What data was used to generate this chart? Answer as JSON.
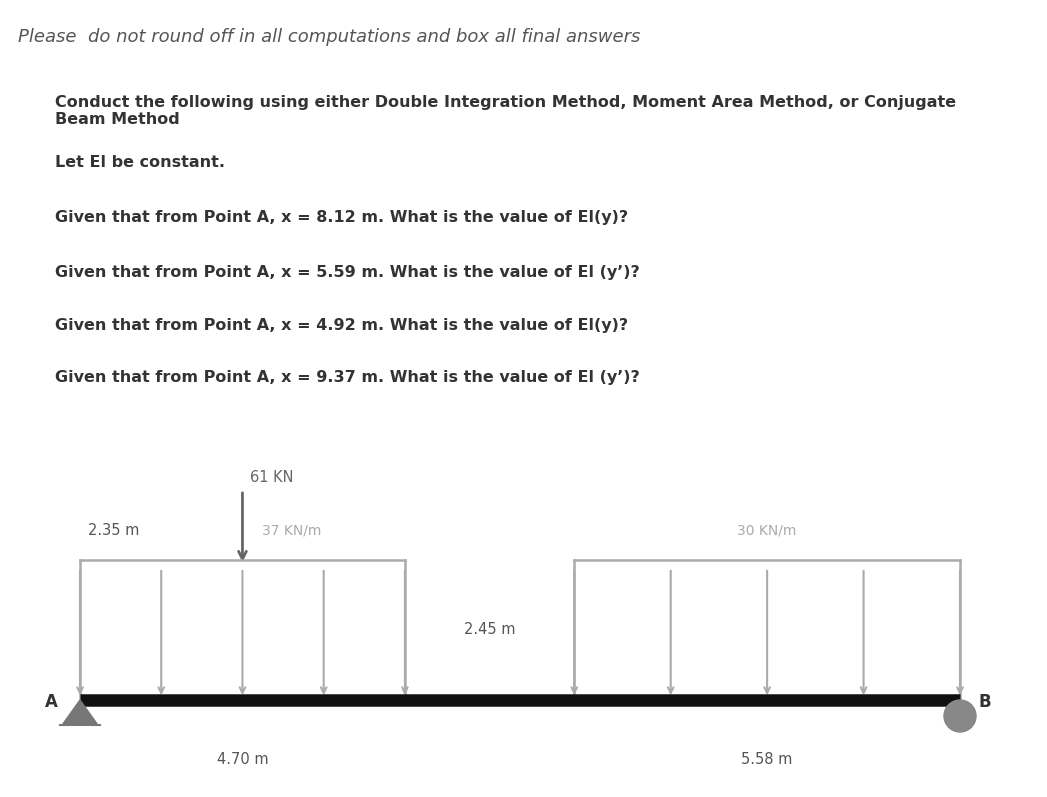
{
  "background_color": "#ffffff",
  "title_text": "Please  do not round off in all computations and box all final answers",
  "title_fontsize": 13,
  "title_color": "#555555",
  "instructions": [
    "Conduct the following using either Double Integration Method, Moment Area Method, or Conjugate\nBeam Method",
    "Let El be constant.",
    "Given that from Point A, x = 8.12 m. What is the value of El(y)?",
    "Given that from Point A, x = 5.59 m. What is the value of El (y’)?",
    "Given that from Point A, x = 4.92 m. What is the value of El(y)?",
    "Given that from Point A, x = 9.37 m. What is the value of El (y’)?"
  ],
  "instr_fontsize": 11.5,
  "instr_color": "#333333",
  "beam_color": "#111111",
  "load_color": "#aaaaaa",
  "point_load_color": "#666666",
  "dim_label_color": "#555555",
  "support_color": "#888888",
  "point_load_label": "61 KN",
  "dist_load_1_label": "37 KN/m",
  "dist_load_2_label": "30 KN/m",
  "dim_235_label": "2.35 m",
  "dim_245_label": "2.45 m",
  "dim_470_label": "4.70 m",
  "dim_558_label": "5.58 m",
  "label_A": "A",
  "label_B": "B"
}
